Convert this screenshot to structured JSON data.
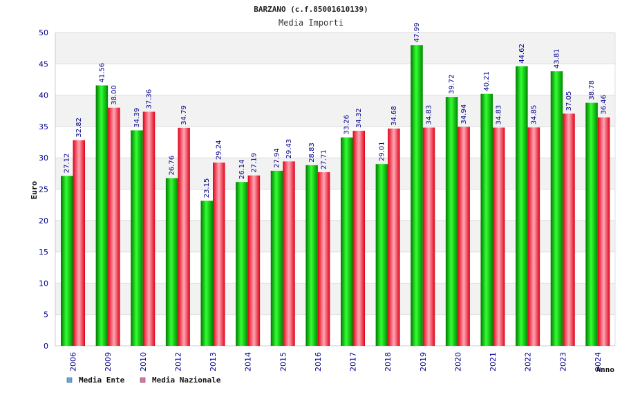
{
  "chart_data": {
    "type": "bar",
    "title": "BARZANO (c.f.85001610139)",
    "subtitle": "Media Importi",
    "xlabel": "Anno",
    "ylabel": "Euro",
    "ylim": [
      0,
      50
    ],
    "yticks": [
      0,
      5,
      10,
      15,
      20,
      25,
      30,
      35,
      40,
      45,
      50
    ],
    "grid": true,
    "legend_position": "bottom-left",
    "categories": [
      "2006",
      "2009",
      "2010",
      "2012",
      "2013",
      "2014",
      "2015",
      "2016",
      "2017",
      "2018",
      "2019",
      "2020",
      "2021",
      "2022",
      "2023",
      "2024"
    ],
    "series": [
      {
        "name": "Media Ente",
        "color": "#00c000",
        "legend_color": "#5fa8e8",
        "values": [
          27.12,
          41.56,
          34.39,
          26.76,
          23.15,
          26.14,
          27.94,
          28.83,
          33.26,
          29.01,
          47.99,
          39.72,
          40.21,
          44.62,
          43.81,
          38.78
        ],
        "labels": [
          "27.12",
          "41.56",
          "34.39",
          "26.76",
          "23.15",
          "26.14",
          "27.94",
          "28.83",
          "33.26",
          "29.01",
          "47.99",
          "39.72",
          "40.21",
          "44.62",
          "43.81",
          "38.78"
        ]
      },
      {
        "name": "Media Nazionale",
        "color": "#e8102a",
        "legend_color": "#e070a0",
        "values": [
          32.82,
          38.0,
          37.36,
          34.79,
          29.24,
          27.19,
          29.43,
          27.71,
          34.32,
          34.68,
          34.83,
          34.94,
          34.83,
          34.85,
          37.05,
          36.46
        ],
        "labels": [
          "32.82",
          "38.00",
          "37.36",
          "34.79",
          "29.24",
          "27.19",
          "29.43",
          "27.71",
          "34.32",
          "34.68",
          "34.83",
          "34.94",
          "34.83",
          "34.85",
          "37.05",
          "36.46"
        ]
      }
    ]
  }
}
